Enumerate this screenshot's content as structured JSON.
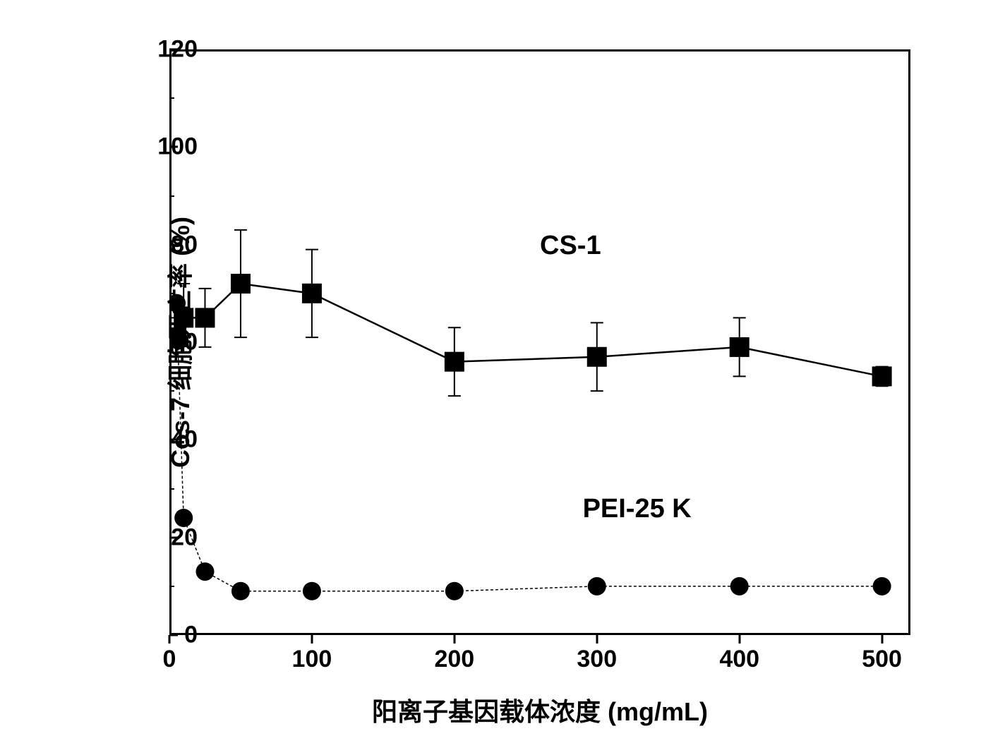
{
  "chart": {
    "type": "line",
    "background_color": "#ffffff",
    "border_color": "#000000",
    "border_width": 3,
    "xlabel": "阳离子基因载体浓度   (mg/mL)",
    "ylabel": "Cos-7 细胞死亡率 (%)",
    "label_fontsize": 36,
    "tick_fontsize": 34,
    "xlim": [
      0,
      520
    ],
    "ylim": [
      0,
      120
    ],
    "x_ticks": [
      0,
      100,
      200,
      300,
      400,
      500
    ],
    "y_ticks": [
      0,
      20,
      40,
      60,
      80,
      100,
      120
    ],
    "y_minor_ticks": [
      10,
      30,
      50,
      70,
      90,
      110
    ],
    "series": {
      "cs1": {
        "label": "CS-1",
        "marker": "square",
        "marker_size": 28,
        "marker_color": "#000000",
        "line_color": "#000000",
        "line_width": 2.5,
        "x": [
          5,
          10,
          25,
          50,
          100,
          200,
          300,
          400,
          500
        ],
        "y": [
          61,
          65,
          65,
          72,
          70,
          56,
          57,
          59,
          53
        ],
        "error_y": [
          4,
          7,
          6,
          11,
          9,
          7,
          7,
          6,
          2
        ],
        "label_position": {
          "x": 260,
          "y_percent": 80
        }
      },
      "pei": {
        "label": "PEI-25 K",
        "marker": "circle",
        "marker_size": 26,
        "marker_color": "#000000",
        "line_color": "#000000",
        "line_width": 1.5,
        "line_style": "dashed",
        "x": [
          5,
          10,
          25,
          50,
          100,
          200,
          300,
          400,
          500
        ],
        "y": [
          68,
          24,
          13,
          9,
          9,
          9,
          10,
          10,
          10
        ],
        "error_y": [
          0,
          0,
          0,
          0,
          0,
          0,
          0,
          0,
          0
        ],
        "label_position": {
          "x": 290,
          "y_percent": 26
        }
      }
    }
  }
}
